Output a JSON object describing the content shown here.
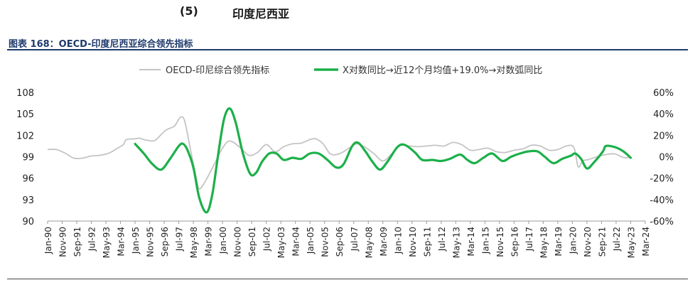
{
  "header": {
    "section_number": "(5)",
    "section_title": "印度尼西亚",
    "figure_title": "图表 168：OECD-印度尼西亚综合领先指标"
  },
  "chart_data": {
    "type": "line",
    "legend_position": "top-center",
    "grid": false,
    "colors": {
      "oecd": "#c4c4c4",
      "yoy": "#1cb04a"
    },
    "x_tick_labels": [
      "Jan-90",
      "Nov-90",
      "Sep-91",
      "Jul-92",
      "May-93",
      "Mar-94",
      "Jan-95",
      "Nov-95",
      "Sep-96",
      "Jul-97",
      "May-98",
      "Mar-99",
      "Jan-00",
      "Nov-00",
      "Sep-01",
      "Jul-02",
      "May-03",
      "Mar-04",
      "Jan-05",
      "Nov-05",
      "Sep-06",
      "Jul-07",
      "May-08",
      "Mar-09",
      "Jan-10",
      "Nov-10",
      "Sep-11",
      "Jul-12",
      "May-13",
      "Mar-14",
      "Jan-15",
      "Nov-15",
      "Sep-16",
      "Jul-17",
      "May-18",
      "Mar-19",
      "Jan-20",
      "Nov-20",
      "Sep-21",
      "Jul-22",
      "May-23",
      "Mar-24"
    ],
    "x_range": [
      "1990-01",
      "2024-03"
    ],
    "left_axis": {
      "ticks": [
        "108",
        "105",
        "102",
        "99",
        "96",
        "93",
        "90"
      ],
      "ylim": [
        90,
        108
      ]
    },
    "right_axis": {
      "ticks": [
        "60%",
        "40%",
        "20%",
        "0%",
        "-20%",
        "-40%",
        "-60%"
      ],
      "ylim": [
        -60,
        60
      ]
    },
    "series": [
      {
        "name": "OECD-印尼综合领先指标",
        "axis": "left",
        "points": [
          [
            "1990-01",
            100.0
          ],
          [
            "1990-07",
            100.0
          ],
          [
            "1991-01",
            99.5
          ],
          [
            "1991-07",
            98.8
          ],
          [
            "1992-01",
            98.8
          ],
          [
            "1992-07",
            99.1
          ],
          [
            "1993-01",
            99.2
          ],
          [
            "1993-07",
            99.5
          ],
          [
            "1994-01",
            100.2
          ],
          [
            "1994-05",
            100.7
          ],
          [
            "1994-07",
            101.4
          ],
          [
            "1995-01",
            101.5
          ],
          [
            "1995-04",
            101.6
          ],
          [
            "1995-07",
            101.4
          ],
          [
            "1996-01",
            101.2
          ],
          [
            "1996-04",
            101.5
          ],
          [
            "1996-10",
            102.7
          ],
          [
            "1997-04",
            103.3
          ],
          [
            "1997-08",
            104.5
          ],
          [
            "1997-11",
            104.0
          ],
          [
            "1998-03",
            100.0
          ],
          [
            "1998-07",
            96.0
          ],
          [
            "1998-09",
            94.5
          ],
          [
            "1999-01",
            95.5
          ],
          [
            "1999-07",
            97.8
          ],
          [
            "2000-01",
            100.2
          ],
          [
            "2000-06",
            101.2
          ],
          [
            "2001-01",
            100.3
          ],
          [
            "2001-07",
            99.2
          ],
          [
            "2002-01",
            99.6
          ],
          [
            "2002-07",
            100.7
          ],
          [
            "2003-01",
            99.7
          ],
          [
            "2003-07",
            100.4
          ],
          [
            "2004-01",
            100.8
          ],
          [
            "2004-07",
            100.9
          ],
          [
            "2005-01",
            101.4
          ],
          [
            "2005-05",
            101.5
          ],
          [
            "2005-10",
            100.8
          ],
          [
            "2006-03",
            99.4
          ],
          [
            "2006-09",
            99.4
          ],
          [
            "2007-03",
            100.1
          ],
          [
            "2007-09",
            100.8
          ],
          [
            "2008-03",
            100.3
          ],
          [
            "2008-09",
            99.4
          ],
          [
            "2009-03",
            98.4
          ],
          [
            "2009-09",
            99.4
          ],
          [
            "2010-03",
            100.6
          ],
          [
            "2010-09",
            100.5
          ],
          [
            "2011-03",
            100.4
          ],
          [
            "2011-09",
            100.5
          ],
          [
            "2012-03",
            100.6
          ],
          [
            "2012-09",
            100.5
          ],
          [
            "2013-03",
            101.0
          ],
          [
            "2013-09",
            100.7
          ],
          [
            "2014-03",
            99.9
          ],
          [
            "2014-09",
            100.0
          ],
          [
            "2015-03",
            100.2
          ],
          [
            "2015-09",
            99.7
          ],
          [
            "2016-03",
            99.6
          ],
          [
            "2016-09",
            99.9
          ],
          [
            "2017-03",
            100.1
          ],
          [
            "2017-09",
            100.6
          ],
          [
            "2018-03",
            100.5
          ],
          [
            "2018-09",
            99.9
          ],
          [
            "2019-03",
            100.0
          ],
          [
            "2019-09",
            100.5
          ],
          [
            "2020-02",
            100.3
          ],
          [
            "2020-05",
            97.6
          ],
          [
            "2020-08",
            98.4
          ],
          [
            "2020-12",
            98.6
          ],
          [
            "2021-06",
            99.0
          ],
          [
            "2021-12",
            99.3
          ],
          [
            "2022-06",
            99.4
          ],
          [
            "2022-12",
            98.9
          ],
          [
            "2023-05",
            98.9
          ]
        ]
      },
      {
        "name": "X对数同比→近12个月均值+19.0%→对数弧同比",
        "axis": "right",
        "points": [
          [
            "1995-01",
            12
          ],
          [
            "1995-07",
            3
          ],
          [
            "1996-01",
            -7
          ],
          [
            "1996-07",
            -12
          ],
          [
            "1997-01",
            -2
          ],
          [
            "1997-07",
            10
          ],
          [
            "1997-10",
            12
          ],
          [
            "1998-01",
            6
          ],
          [
            "1998-05",
            -10
          ],
          [
            "1998-09",
            -38
          ],
          [
            "1999-02",
            -52
          ],
          [
            "1999-06",
            -35
          ],
          [
            "1999-10",
            2
          ],
          [
            "2000-02",
            35
          ],
          [
            "2000-06",
            45
          ],
          [
            "2000-10",
            32
          ],
          [
            "2001-03",
            3
          ],
          [
            "2001-08",
            -16
          ],
          [
            "2001-12",
            -15
          ],
          [
            "2002-04",
            -5
          ],
          [
            "2002-09",
            3
          ],
          [
            "2003-02",
            3
          ],
          [
            "2003-07",
            -3
          ],
          [
            "2004-01",
            -1
          ],
          [
            "2004-07",
            -2
          ],
          [
            "2005-01",
            3
          ],
          [
            "2005-07",
            3
          ],
          [
            "2006-01",
            -3
          ],
          [
            "2006-07",
            -10
          ],
          [
            "2006-12",
            -7
          ],
          [
            "2007-06",
            10
          ],
          [
            "2007-10",
            13
          ],
          [
            "2008-03",
            5
          ],
          [
            "2008-08",
            -5
          ],
          [
            "2009-01",
            -12
          ],
          [
            "2009-06",
            -5
          ],
          [
            "2010-01",
            9
          ],
          [
            "2010-06",
            11
          ],
          [
            "2011-01",
            4
          ],
          [
            "2011-06",
            -3
          ],
          [
            "2012-01",
            -3
          ],
          [
            "2012-07",
            -4
          ],
          [
            "2013-01",
            -2
          ],
          [
            "2013-08",
            2
          ],
          [
            "2014-01",
            -3
          ],
          [
            "2014-06",
            -6
          ],
          [
            "2014-12",
            -1
          ],
          [
            "2015-06",
            3
          ],
          [
            "2016-01",
            -4
          ],
          [
            "2016-07",
            0
          ],
          [
            "2017-01",
            3
          ],
          [
            "2017-07",
            5
          ],
          [
            "2018-01",
            5
          ],
          [
            "2018-06",
            0
          ],
          [
            "2018-12",
            -6
          ],
          [
            "2019-06",
            -2
          ],
          [
            "2019-12",
            1
          ],
          [
            "2020-03",
            3
          ],
          [
            "2020-07",
            -2
          ],
          [
            "2020-11",
            -11
          ],
          [
            "2021-04",
            -5
          ],
          [
            "2021-10",
            5
          ],
          [
            "2021-12",
            10
          ],
          [
            "2022-06",
            9
          ],
          [
            "2022-12",
            5
          ],
          [
            "2023-05",
            -1
          ]
        ]
      }
    ]
  }
}
